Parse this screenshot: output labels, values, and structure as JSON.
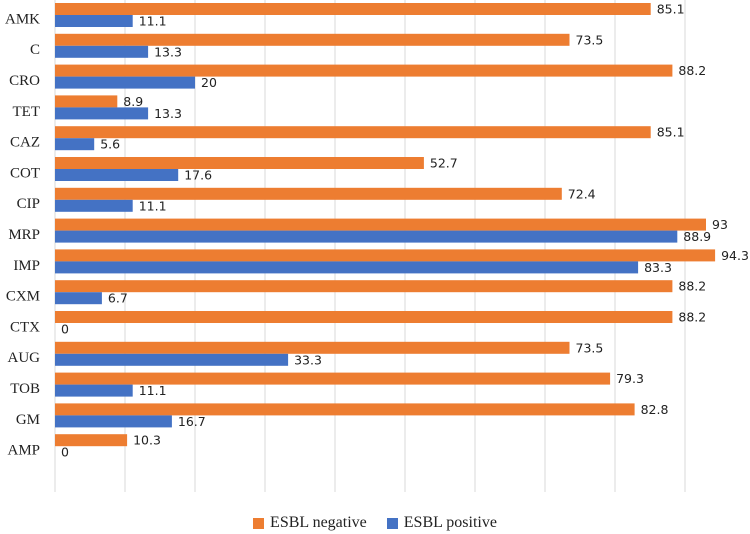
{
  "chart_data": {
    "type": "bar",
    "orientation": "horizontal",
    "categories": [
      "AMK",
      "C",
      "CRO",
      "TET",
      "CAZ",
      "COT",
      "CIP",
      "MRP",
      "IMP",
      "CXM",
      "CTX",
      "AUG",
      "TOB",
      "GM",
      "AMP"
    ],
    "series": [
      {
        "name": "ESBL negative",
        "color": "#ED7D31",
        "values": [
          85.1,
          73.5,
          88.2,
          8.9,
          85.1,
          52.7,
          72.4,
          93,
          94.3,
          88.2,
          88.2,
          73.5,
          79.3,
          82.8,
          10.3
        ],
        "labels": [
          "85.1",
          "73.5",
          "88.2",
          "8.9",
          "85.1",
          "52.7",
          "72.4",
          "93",
          "94.3",
          "88.2",
          "88.2",
          "73.5",
          "79.3",
          "82.8",
          "10.3"
        ]
      },
      {
        "name": "ESBL positive",
        "color": "#4472C4",
        "values": [
          11.1,
          13.3,
          20,
          13.3,
          5.6,
          17.6,
          11.1,
          88.9,
          83.3,
          6.7,
          0,
          33.3,
          11.1,
          16.7,
          0
        ],
        "labels": [
          "11.1",
          "13.3",
          "20",
          "13.3",
          "5.6",
          "17.6",
          "11.1",
          "88.9",
          "83.3",
          "6.7",
          "0",
          "33.3",
          "11.1",
          "16.7",
          "0"
        ]
      }
    ],
    "xlim": [
      0,
      100
    ],
    "grid": "vertical",
    "gridline_color": "#d9d9d9",
    "legend_position": "bottom",
    "title": "",
    "xlabel": "",
    "ylabel": ""
  }
}
